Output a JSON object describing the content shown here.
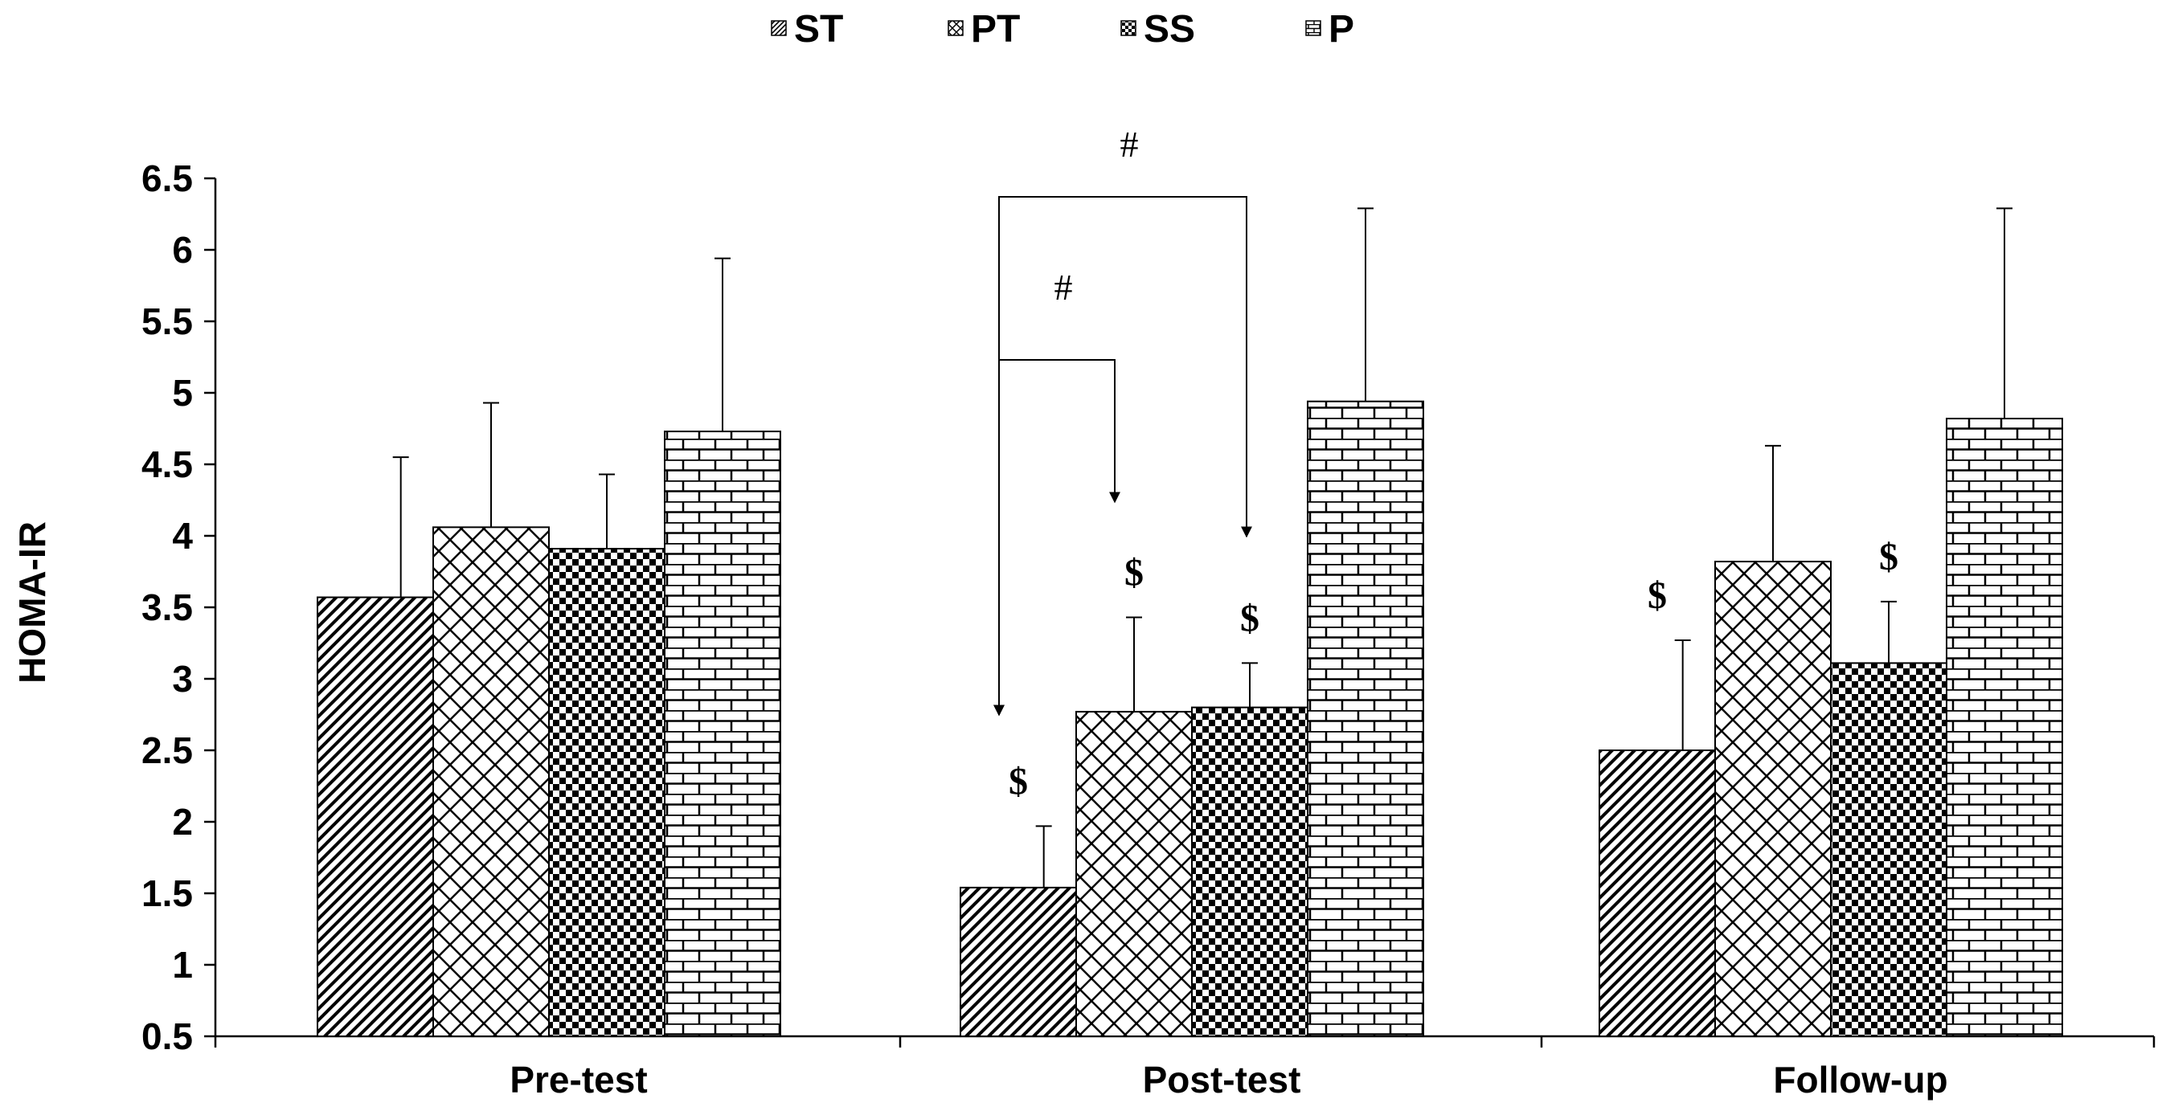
{
  "chart_data": {
    "type": "bar",
    "title": "",
    "xlabel": "",
    "ylabel": "HOMA-IR",
    "ylim": [
      0.5,
      6.5
    ],
    "yticks": [
      "0.5",
      "1",
      "1.5",
      "2",
      "2.5",
      "3",
      "3.5",
      "4",
      "4.5",
      "5",
      "5.5",
      "6",
      "6.5"
    ],
    "categories": [
      "Pre-test",
      "Post-test",
      "Follow-up"
    ],
    "legend_position": "top-center",
    "series": [
      {
        "name": "ST",
        "pattern": "diagonal-dense",
        "values": [
          3.57,
          1.54,
          2.5
        ],
        "errors": [
          0.98,
          0.43,
          0.77
        ]
      },
      {
        "name": "PT",
        "pattern": "crosshatch",
        "values": [
          4.06,
          2.77,
          3.82
        ],
        "errors": [
          0.87,
          0.66,
          0.81
        ]
      },
      {
        "name": "SS",
        "pattern": "checker",
        "values": [
          3.91,
          2.8,
          3.11
        ],
        "errors": [
          0.52,
          0.31,
          0.43
        ]
      },
      {
        "name": "P",
        "pattern": "brick",
        "values": [
          4.73,
          4.94,
          4.82
        ],
        "errors": [
          1.21,
          1.35,
          1.47
        ]
      }
    ],
    "significance_marks": [
      {
        "category": "Post-test",
        "series": "ST",
        "symbol": "$"
      },
      {
        "category": "Post-test",
        "series": "PT",
        "symbol": "$"
      },
      {
        "category": "Post-test",
        "series": "SS",
        "symbol": "$"
      },
      {
        "category": "Follow-up",
        "series": "ST",
        "symbol": "$"
      },
      {
        "category": "Follow-up",
        "series": "SS",
        "symbol": "$"
      }
    ],
    "brackets": [
      {
        "category": "Post-test",
        "from": "ST",
        "to": "PT",
        "symbol": "#"
      },
      {
        "category": "Post-test",
        "from": "ST",
        "to": "SS",
        "symbol": "#"
      }
    ],
    "colors": {
      "ink": "#000000",
      "background": "#ffffff"
    }
  }
}
